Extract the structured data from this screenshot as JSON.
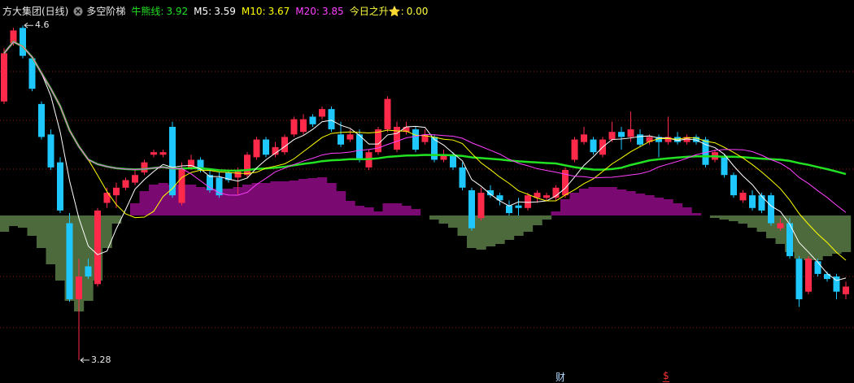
{
  "chart_data": {
    "type": "candlestick",
    "title": "方大集团(日线)",
    "indicator": "多空阶梯",
    "legend": [
      {
        "label": "牛熊线:",
        "value": 3.92,
        "color": "#22e022",
        "period": 60
      },
      {
        "label": "M5:",
        "value": 3.59,
        "color": "#ffffff",
        "period": 5
      },
      {
        "label": "M10:",
        "value": 3.67,
        "color": "#ffff00",
        "period": 10
      },
      {
        "label": "M20:",
        "value": 3.85,
        "color": "#ff40ff",
        "period": 20
      },
      {
        "label": "今日之升⭐:",
        "value": {
          "value": 0,
          "label": "0.00"
        },
        "color": "#ffff40"
      }
    ],
    "ylim": [
      3.19,
      4.7
    ],
    "y2lim": [
      -206,
      265
    ],
    "up_color": "#ff2a4a",
    "down_color": "#1ec8ff",
    "area_colors": [
      "#7a0a72",
      "#4d6a3c"
    ],
    "open": [
      4.3,
      4.53,
      4.59,
      4.47,
      4.29,
      4.17,
      4.06,
      3.82,
      3.52,
      3.65,
      3.58,
      3.9,
      3.93,
      3.96,
      3.98,
      4.02,
      4.09,
      4.09,
      4.2,
      3.9,
      4.04,
      4.07,
      4.01,
      4.0,
      4.02,
      4.0,
      4.01,
      4.08,
      4.15,
      4.09,
      4.1,
      4.17,
      4.18,
      4.24,
      4.24,
      4.27,
      4.17,
      4.15,
      4.17,
      4.04,
      4.1,
      4.19,
      4.11,
      4.18,
      4.19,
      4.14,
      4.16,
      4.07,
      4.09,
      4.04,
      3.95,
      3.84,
      3.95,
      3.93,
      3.89,
      3.89,
      3.88,
      3.92,
      3.92,
      3.92,
      3.93,
      4.07,
      4.14,
      4.15,
      4.09,
      4.15,
      4.18,
      4.16,
      4.17,
      4.14,
      4.16,
      4.14,
      4.16,
      4.14,
      4.16,
      4.15,
      4.07,
      4.08,
      4.01,
      3.91,
      3.93,
      3.93,
      3.93,
      3.8,
      3.82,
      3.68,
      3.55,
      3.67,
      3.62,
      3.61,
      3.54
    ],
    "high": [
      4.51,
      4.59,
      4.6,
      4.48,
      4.3,
      4.19,
      4.08,
      3.86,
      3.68,
      3.68,
      3.88,
      3.96,
      3.98,
      4.0,
      4.03,
      4.07,
      4.11,
      4.11,
      4.22,
      4.06,
      4.09,
      4.08,
      4.03,
      4.02,
      4.03,
      4.04,
      4.1,
      4.16,
      4.16,
      4.14,
      4.17,
      4.24,
      4.25,
      4.25,
      4.28,
      4.28,
      4.22,
      4.19,
      4.19,
      4.11,
      4.2,
      4.32,
      4.22,
      4.22,
      4.2,
      4.19,
      4.17,
      4.11,
      4.1,
      4.06,
      3.96,
      3.96,
      3.97,
      3.94,
      3.91,
      3.92,
      3.94,
      3.95,
      3.94,
      3.97,
      4.04,
      4.16,
      4.2,
      4.16,
      4.16,
      4.22,
      4.2,
      4.26,
      4.19,
      4.17,
      4.17,
      4.24,
      4.18,
      4.17,
      4.17,
      4.16,
      4.11,
      4.09,
      4.02,
      3.95,
      3.95,
      3.94,
      3.94,
      3.84,
      3.84,
      3.69,
      3.69,
      3.68,
      3.63,
      3.62,
      3.59
    ],
    "low": [
      4.29,
      4.52,
      4.47,
      4.34,
      4.15,
      4.03,
      3.86,
      3.51,
      3.28,
      3.6,
      3.57,
      3.88,
      3.88,
      3.95,
      3.97,
      4.01,
      4.08,
      4.08,
      3.92,
      3.89,
      4.03,
      4.02,
      3.94,
      3.92,
      3.98,
      3.93,
      4.0,
      4.07,
      4.08,
      4.08,
      4.09,
      4.16,
      4.17,
      4.2,
      4.23,
      4.18,
      4.12,
      4.14,
      4.06,
      4.03,
      4.09,
      4.18,
      4.1,
      4.17,
      4.1,
      4.13,
      4.06,
      4.06,
      4.03,
      3.95,
      3.79,
      3.83,
      3.92,
      3.89,
      3.85,
      3.85,
      3.87,
      3.9,
      3.91,
      3.91,
      3.92,
      4.06,
      4.13,
      4.09,
      4.08,
      4.14,
      4.11,
      4.14,
      4.12,
      4.13,
      4.08,
      4.13,
      4.13,
      4.13,
      4.13,
      4.04,
      4.06,
      4.0,
      3.92,
      3.9,
      3.87,
      3.86,
      3.81,
      3.79,
      3.68,
      3.49,
      3.54,
      3.61,
      3.59,
      3.52,
      3.52
    ],
    "close": [
      4.49,
      4.58,
      4.48,
      4.35,
      4.16,
      4.04,
      3.87,
      3.52,
      3.61,
      3.61,
      3.87,
      3.94,
      3.96,
      3.99,
      4.01,
      4.06,
      4.1,
      4.1,
      3.93,
      4.04,
      4.07,
      4.03,
      3.95,
      3.93,
      3.99,
      4.03,
      4.09,
      4.15,
      4.09,
      4.12,
      4.16,
      4.23,
      4.23,
      4.21,
      4.27,
      4.19,
      4.13,
      4.17,
      4.07,
      4.1,
      4.19,
      4.31,
      4.2,
      4.2,
      4.11,
      4.17,
      4.07,
      4.09,
      4.04,
      3.96,
      3.8,
      3.94,
      3.93,
      3.91,
      3.86,
      3.88,
      3.93,
      3.94,
      3.93,
      3.96,
      4.03,
      4.15,
      4.17,
      4.1,
      4.15,
      4.18,
      4.16,
      4.19,
      4.13,
      4.16,
      4.14,
      4.16,
      4.14,
      4.16,
      4.14,
      4.05,
      4.1,
      4.01,
      3.93,
      3.94,
      3.88,
      3.87,
      3.82,
      3.82,
      3.69,
      3.52,
      3.68,
      3.62,
      3.6,
      3.55,
      3.57
    ],
    "area": [
      -20,
      -13,
      -15,
      -25,
      -40,
      -60,
      -80,
      -105,
      -118,
      -105,
      -80,
      -40,
      -10,
      0,
      15,
      30,
      38,
      40,
      38,
      38,
      38,
      35,
      33,
      33,
      33,
      35,
      38,
      40,
      40,
      42,
      42,
      43,
      45,
      46,
      47,
      40,
      30,
      18,
      12,
      10,
      5,
      15,
      15,
      12,
      8,
      0,
      -5,
      -10,
      -15,
      -25,
      -40,
      -42,
      -38,
      -35,
      -30,
      -25,
      -20,
      -12,
      -5,
      5,
      20,
      28,
      33,
      35,
      35,
      35,
      32,
      30,
      27,
      25,
      22,
      20,
      15,
      10,
      3,
      0,
      -3,
      -5,
      -7,
      -10,
      -15,
      -20,
      -28,
      -35,
      -45,
      -53,
      -55,
      -55,
      -50,
      -47,
      -45
    ],
    "annotations": [
      4.6,
      3.28
    ],
    "markers": [
      "财",
      "$"
    ]
  }
}
